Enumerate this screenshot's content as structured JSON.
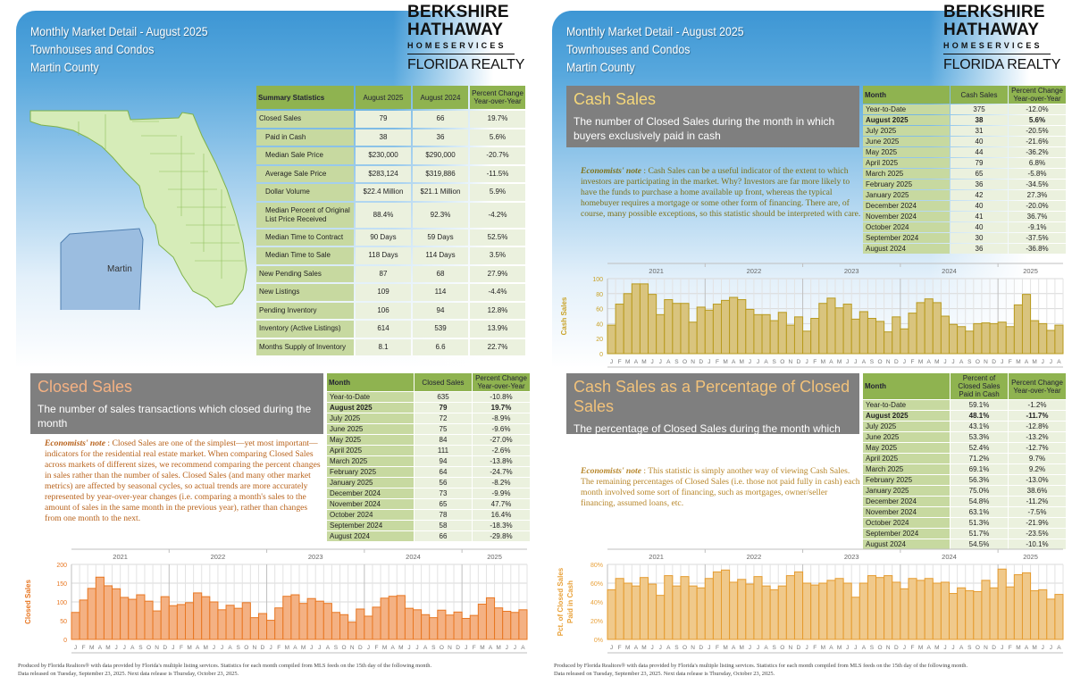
{
  "header": {
    "line1": "Monthly Market Detail - August 2025",
    "line2": "Townhouses and Condos",
    "line3": "Martin County"
  },
  "logo": {
    "line1": "BERKSHIRE",
    "line2": "HATHAWAY",
    "line3": "HOMESERVICES",
    "line4": "FLORIDA REALTY"
  },
  "map": {
    "county_label": "Martin"
  },
  "summary": {
    "headers": [
      "Summary Statistics",
      "August 2025",
      "August 2024",
      "Percent Change Year-over-Year"
    ],
    "rows": [
      {
        "label": "Closed Sales",
        "v1": "79",
        "v2": "66",
        "pct": "19.7%",
        "indent": false
      },
      {
        "label": "Paid in Cash",
        "v1": "38",
        "v2": "36",
        "pct": "5.6%",
        "indent": true
      },
      {
        "label": "Median Sale Price",
        "v1": "$230,000",
        "v2": "$290,000",
        "pct": "-20.7%",
        "indent": true
      },
      {
        "label": "Average Sale Price",
        "v1": "$283,124",
        "v2": "$319,886",
        "pct": "-11.5%",
        "indent": true
      },
      {
        "label": "Dollar Volume",
        "v1": "$22.4 Million",
        "v2": "$21.1 Million",
        "pct": "5.9%",
        "indent": true
      },
      {
        "label": "Median Percent of Original List Price Received",
        "v1": "88.4%",
        "v2": "92.3%",
        "pct": "-4.2%",
        "indent": true
      },
      {
        "label": "Median Time to Contract",
        "v1": "90 Days",
        "v2": "59 Days",
        "pct": "52.5%",
        "indent": true
      },
      {
        "label": "Median Time to Sale",
        "v1": "118 Days",
        "v2": "114 Days",
        "pct": "3.5%",
        "indent": true
      },
      {
        "label": "New Pending Sales",
        "v1": "87",
        "v2": "68",
        "pct": "27.9%",
        "indent": false
      },
      {
        "label": "New Listings",
        "v1": "109",
        "v2": "114",
        "pct": "-4.4%",
        "indent": false
      },
      {
        "label": "Pending Inventory",
        "v1": "106",
        "v2": "94",
        "pct": "12.8%",
        "indent": false
      },
      {
        "label": "Inventory (Active Listings)",
        "v1": "614",
        "v2": "539",
        "pct": "13.9%",
        "indent": false
      },
      {
        "label": "Months Supply of Inventory",
        "v1": "8.1",
        "v2": "6.6",
        "pct": "22.7%",
        "indent": false
      }
    ]
  },
  "sections": [
    {
      "title": "Closed Sales",
      "desc": "The number of sales transactions which closed during the month",
      "note_label": "Economists' note",
      "note": "Closed Sales are one of the simplest—yet most important—indicators for the residential real estate market.  When comparing Closed Sales across markets of different sizes, we recommend comparing the percent changes in sales rather than the number of sales.  Closed Sales (and many other market metrics) are affected by seasonal cycles, so actual trends are more accurately represented by year-over-year changes (i.e. comparing a month's sales to the amount of sales in the same month in the previous year), rather than changes from one month to the next.",
      "table_headers": [
        "Month",
        "Closed Sales",
        "Percent Change Year-over-Year"
      ],
      "rows": [
        [
          "Year-to-Date",
          "635",
          "-10.8%"
        ],
        [
          "August 2025",
          "79",
          "19.7%"
        ],
        [
          "July 2025",
          "72",
          "-8.9%"
        ],
        [
          "June 2025",
          "75",
          "-9.6%"
        ],
        [
          "May 2025",
          "84",
          "-27.0%"
        ],
        [
          "April 2025",
          "111",
          "-2.6%"
        ],
        [
          "March 2025",
          "94",
          "-13.8%"
        ],
        [
          "February 2025",
          "64",
          "-24.7%"
        ],
        [
          "January 2025",
          "56",
          "-8.2%"
        ],
        [
          "December 2024",
          "73",
          "-9.9%"
        ],
        [
          "November 2024",
          "65",
          "47.7%"
        ],
        [
          "October 2024",
          "78",
          "16.4%"
        ],
        [
          "September 2024",
          "58",
          "-18.3%"
        ],
        [
          "August 2024",
          "66",
          "-29.8%"
        ]
      ]
    },
    {
      "title": "Cash Sales",
      "desc": "The number of Closed Sales during the month in which buyers exclusively paid in cash",
      "note_label": "Economists' note",
      "note": "Cash Sales can be a useful indicator of the extent to which investors are participating in the market.  Why?  Investors are far more likely to have the funds to purchase a home available up front, whereas the typical homebuyer requires a mortgage or some other form of financing.  There are, of course, many possible exceptions, so this statistic should be interpreted with care.",
      "table_headers": [
        "Month",
        "Cash Sales",
        "Percent Change Year-over-Year"
      ],
      "rows": [
        [
          "Year-to-Date",
          "375",
          "-12.0%"
        ],
        [
          "August 2025",
          "38",
          "5.6%"
        ],
        [
          "July 2025",
          "31",
          "-20.5%"
        ],
        [
          "June 2025",
          "40",
          "-21.6%"
        ],
        [
          "May 2025",
          "44",
          "-36.2%"
        ],
        [
          "April 2025",
          "79",
          "6.8%"
        ],
        [
          "March 2025",
          "65",
          "-5.8%"
        ],
        [
          "February 2025",
          "36",
          "-34.5%"
        ],
        [
          "January 2025",
          "42",
          "27.3%"
        ],
        [
          "December 2024",
          "40",
          "-20.0%"
        ],
        [
          "November 2024",
          "41",
          "36.7%"
        ],
        [
          "October 2024",
          "40",
          "-9.1%"
        ],
        [
          "September 2024",
          "30",
          "-37.5%"
        ],
        [
          "August 2024",
          "36",
          "-36.8%"
        ]
      ]
    },
    {
      "title": "Cash Sales as a Percentage of Closed Sales",
      "desc": "The percentage of Closed Sales during the month which were Cash Sales",
      "note_label": "Economists' note",
      "note": "This statistic is simply another way of viewing Cash Sales.  The remaining percentages of Closed Sales (i.e. those not paid fully in cash) each month involved some sort of financing, such as mortgages, owner/seller financing, assumed loans, etc.",
      "table_headers": [
        "Month",
        "Percent of Closed Sales Paid in Cash",
        "Percent Change Year-over-Year"
      ],
      "rows": [
        [
          "Year-to-Date",
          "59.1%",
          "-1.2%"
        ],
        [
          "August 2025",
          "48.1%",
          "-11.7%"
        ],
        [
          "July 2025",
          "43.1%",
          "-12.8%"
        ],
        [
          "June 2025",
          "53.3%",
          "-13.2%"
        ],
        [
          "May 2025",
          "52.4%",
          "-12.7%"
        ],
        [
          "April 2025",
          "71.2%",
          "9.7%"
        ],
        [
          "March 2025",
          "69.1%",
          "9.2%"
        ],
        [
          "February 2025",
          "56.3%",
          "-13.0%"
        ],
        [
          "January 2025",
          "75.0%",
          "38.6%"
        ],
        [
          "December 2024",
          "54.8%",
          "-11.2%"
        ],
        [
          "November 2024",
          "63.1%",
          "-7.5%"
        ],
        [
          "October 2024",
          "51.3%",
          "-21.9%"
        ],
        [
          "September 2024",
          "51.7%",
          "-23.5%"
        ],
        [
          "August 2024",
          "54.5%",
          "-10.1%"
        ]
      ]
    }
  ],
  "footer": {
    "line1": "Produced by Florida Realtors® with data provided by Florida's multiple listing services. Statistics for each month compiled from MLS feeds on the 15th day of the following month.",
    "line2": "Data released on Tuesday, September 23, 2025. Next data release is Thursday, October 23, 2025."
  },
  "colors": {
    "closed_fill": "#f4b183",
    "closed_stroke": "#e87722",
    "cash_fill": "#d9c47e",
    "cash_stroke": "#b89a1e",
    "pct_fill": "#f0c98b",
    "pct_stroke": "#e59b2e",
    "table_header": "#8fb350"
  },
  "chart_data": [
    {
      "type": "bar",
      "title": "",
      "ylabel": "Closed Sales",
      "ylim": [
        0,
        200
      ],
      "yticks": [
        "0",
        "50",
        "100",
        "150",
        "200"
      ],
      "years": [
        "2021",
        "2022",
        "2023",
        "2024",
        "2025"
      ],
      "months": [
        "J",
        "F",
        "M",
        "A",
        "M",
        "J",
        "J",
        "A",
        "S",
        "O",
        "N",
        "D"
      ],
      "values": [
        72,
        105,
        136,
        166,
        143,
        135,
        112,
        107,
        119,
        102,
        76,
        114,
        90,
        93,
        98,
        124,
        114,
        100,
        79,
        91,
        83,
        98,
        58,
        69,
        51,
        84,
        115,
        119,
        96,
        109,
        102,
        96,
        72,
        66,
        46,
        81,
        62,
        86,
        110,
        115,
        117,
        83,
        79,
        66,
        58,
        78,
        65,
        73,
        56,
        64,
        94,
        111,
        84,
        75,
        72,
        79
      ]
    },
    {
      "type": "bar",
      "title": "",
      "ylabel": "Cash Sales",
      "ylim": [
        0,
        100
      ],
      "yticks": [
        "0",
        "20",
        "40",
        "60",
        "80",
        "100"
      ],
      "years": [
        "2021",
        "2022",
        "2023",
        "2024",
        "2025"
      ],
      "months": [
        "J",
        "F",
        "M",
        "A",
        "M",
        "J",
        "J",
        "A",
        "S",
        "O",
        "N",
        "D"
      ],
      "values": [
        38,
        66,
        80,
        93,
        93,
        79,
        52,
        72,
        67,
        67,
        42,
        62,
        58,
        66,
        71,
        75,
        72,
        59,
        52,
        52,
        44,
        55,
        38,
        49,
        30,
        47,
        67,
        74,
        61,
        66,
        46,
        56,
        47,
        43,
        29,
        49,
        33,
        54,
        68,
        73,
        68,
        50,
        39,
        36,
        30,
        40,
        41,
        40,
        42,
        36,
        65,
        79,
        44,
        40,
        31,
        38
      ]
    },
    {
      "type": "bar",
      "title": "",
      "ylabel": "Pct. of Closed Sales Paid in Cash",
      "ylim": [
        0,
        80
      ],
      "yticks": [
        "0%",
        "20%",
        "40%",
        "60%",
        "80%"
      ],
      "years": [
        "2021",
        "2022",
        "2023",
        "2024",
        "2025"
      ],
      "months": [
        "J",
        "F",
        "M",
        "A",
        "M",
        "J",
        "J",
        "A",
        "S",
        "O",
        "N",
        "D"
      ],
      "values": [
        53,
        65,
        60,
        57,
        66,
        59,
        47,
        68,
        57,
        67,
        57,
        55,
        65,
        72,
        74,
        61,
        64,
        59,
        67,
        57,
        53,
        57,
        68,
        72,
        60,
        58,
        60,
        63,
        65,
        60,
        45,
        60,
        68,
        66,
        68,
        61,
        54,
        65,
        63,
        65,
        60,
        61,
        49,
        55,
        52,
        51,
        63,
        55,
        75,
        56,
        69,
        71,
        52,
        53,
        43,
        48
      ]
    }
  ]
}
